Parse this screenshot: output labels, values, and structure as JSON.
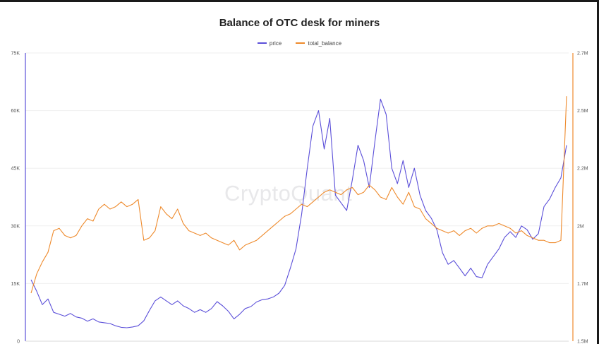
{
  "chart_data": {
    "type": "line",
    "title": "Balance of OTC desk for miners",
    "watermark": "CryptoQuant",
    "legend_position": "top-center",
    "grid": true,
    "y_left": {
      "ticks": [
        "0",
        "15K",
        "30K",
        "45K",
        "60K",
        "75K"
      ],
      "range": [
        0,
        75000
      ]
    },
    "y_right": {
      "ticks": [
        "1.5M",
        "1.7M",
        "2M",
        "2.2M",
        "2.5M",
        "2.7M"
      ],
      "range": [
        1500000,
        2700000
      ]
    },
    "series": [
      {
        "name": "price",
        "axis": "left",
        "color": "#5b4fd9",
        "values": [
          16000,
          13000,
          9500,
          11000,
          7500,
          7000,
          6500,
          7200,
          6300,
          6000,
          5200,
          5800,
          5000,
          4800,
          4600,
          4000,
          3600,
          3500,
          3700,
          4000,
          5300,
          8000,
          10500,
          11500,
          10500,
          9500,
          10500,
          9200,
          8500,
          7500,
          8200,
          7500,
          8500,
          10300,
          9200,
          7800,
          5800,
          7000,
          8500,
          9000,
          10200,
          10800,
          11000,
          11500,
          12500,
          14500,
          19000,
          24000,
          33000,
          45000,
          56000,
          60000,
          50000,
          58000,
          38000,
          36000,
          34000,
          42000,
          51000,
          47000,
          40000,
          52000,
          63000,
          59000,
          45000,
          41000,
          47000,
          40000,
          45000,
          38000,
          34000,
          32000,
          29000,
          23000,
          20000,
          21000,
          19000,
          17000,
          19000,
          16800,
          16500,
          20000,
          22000,
          24000,
          27000,
          28500,
          27000,
          30000,
          29000,
          26500,
          28000,
          35000,
          37000,
          40000,
          42500,
          51000
        ]
      },
      {
        "name": "total_balance",
        "axis": "right",
        "color": "#ee8a2c",
        "values": [
          1700000,
          1780000,
          1830000,
          1870000,
          1960000,
          1970000,
          1940000,
          1930000,
          1940000,
          1980000,
          2010000,
          2000000,
          2050000,
          2070000,
          2050000,
          2060000,
          2080000,
          2060000,
          2070000,
          2090000,
          1920000,
          1930000,
          1960000,
          2060000,
          2030000,
          2010000,
          2050000,
          1990000,
          1960000,
          1950000,
          1940000,
          1950000,
          1930000,
          1920000,
          1910000,
          1900000,
          1920000,
          1880000,
          1900000,
          1910000,
          1920000,
          1940000,
          1960000,
          1980000,
          2000000,
          2020000,
          2030000,
          2050000,
          2070000,
          2060000,
          2080000,
          2100000,
          2120000,
          2130000,
          2120000,
          2110000,
          2130000,
          2140000,
          2110000,
          2120000,
          2150000,
          2130000,
          2100000,
          2090000,
          2140000,
          2100000,
          2070000,
          2120000,
          2060000,
          2050000,
          2010000,
          1990000,
          1970000,
          1960000,
          1950000,
          1960000,
          1940000,
          1960000,
          1970000,
          1950000,
          1970000,
          1980000,
          1980000,
          1990000,
          1980000,
          1970000,
          1950000,
          1960000,
          1940000,
          1930000,
          1920000,
          1920000,
          1910000,
          1910000,
          1920000,
          2520000
        ]
      }
    ]
  }
}
